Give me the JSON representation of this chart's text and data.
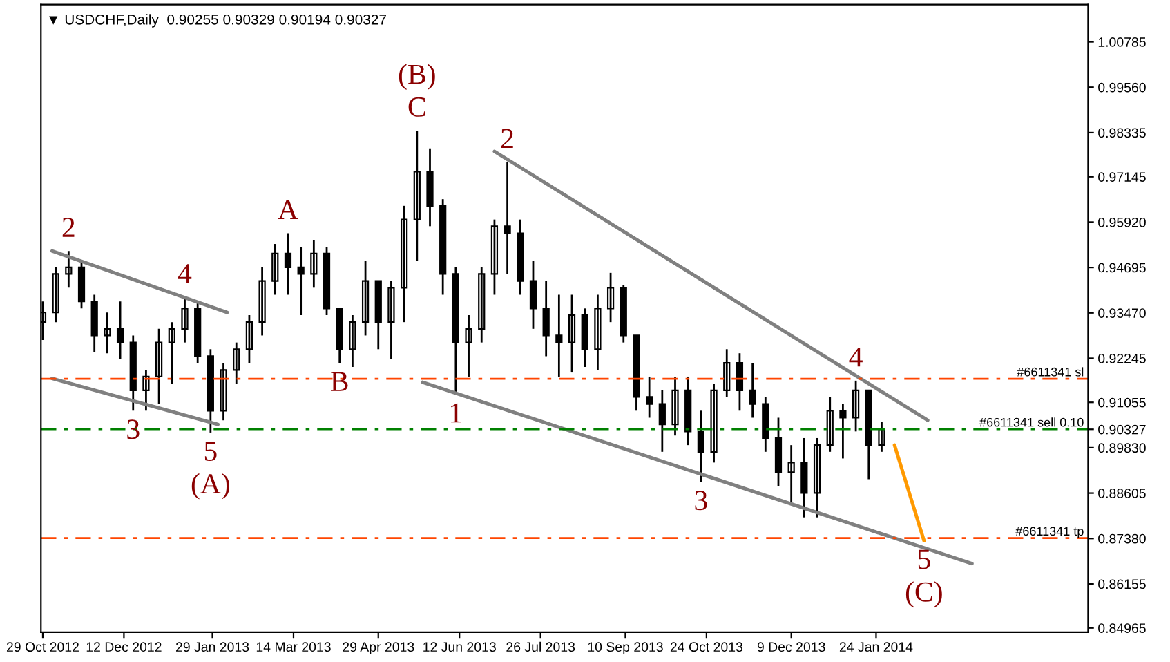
{
  "chart_data": {
    "type": "candlestick",
    "title": "▼ USDCHF,Daily  0.90255 0.90329 0.90194 0.90327",
    "color": "#000000",
    "x": [
      "2012-10-29",
      "2012-11-05",
      "2012-11-12",
      "2012-11-19",
      "2012-11-26",
      "2012-12-03",
      "2012-12-10",
      "2012-12-17",
      "2012-12-24",
      "2012-12-31",
      "2013-01-07",
      "2013-01-14",
      "2013-01-21",
      "2013-01-28",
      "2013-02-04",
      "2013-02-11",
      "2013-02-18",
      "2013-02-25",
      "2013-03-04",
      "2013-03-11",
      "2013-03-18",
      "2013-03-25",
      "2013-04-01",
      "2013-04-08",
      "2013-04-15",
      "2013-04-22",
      "2013-04-29",
      "2013-05-06",
      "2013-05-13",
      "2013-05-20",
      "2013-05-27",
      "2013-06-03",
      "2013-06-10",
      "2013-06-17",
      "2013-06-24",
      "2013-07-01",
      "2013-07-08",
      "2013-07-15",
      "2013-07-22",
      "2013-07-29",
      "2013-08-05",
      "2013-08-12",
      "2013-08-19",
      "2013-08-26",
      "2013-09-02",
      "2013-09-09",
      "2013-09-16",
      "2013-09-23",
      "2013-09-30",
      "2013-10-07",
      "2013-10-14",
      "2013-10-21",
      "2013-10-28",
      "2013-11-04",
      "2013-11-11",
      "2013-11-18",
      "2013-11-25",
      "2013-12-02",
      "2013-12-09",
      "2013-12-16",
      "2013-12-23",
      "2013-12-30",
      "2014-01-06",
      "2014-01-13",
      "2014-01-20",
      "2014-01-27"
    ],
    "ohlc": [
      [
        0.9322,
        0.9378,
        0.9274,
        0.9348
      ],
      [
        0.9348,
        0.947,
        0.9322,
        0.9452
      ],
      [
        0.9452,
        0.9514,
        0.9415,
        0.947
      ],
      [
        0.947,
        0.9488,
        0.9359,
        0.9378
      ],
      [
        0.9378,
        0.9396,
        0.9241,
        0.9286
      ],
      [
        0.9286,
        0.9348,
        0.9238,
        0.9304
      ],
      [
        0.9304,
        0.9378,
        0.9223,
        0.9267
      ],
      [
        0.9267,
        0.9286,
        0.9083,
        0.9138
      ],
      [
        0.9138,
        0.9193,
        0.9083,
        0.9175
      ],
      [
        0.9175,
        0.9304,
        0.9101,
        0.9267
      ],
      [
        0.9267,
        0.9322,
        0.9156,
        0.9304
      ],
      [
        0.9304,
        0.9389,
        0.9267,
        0.9359
      ],
      [
        0.9359,
        0.9378,
        0.9212,
        0.923
      ],
      [
        0.923,
        0.9249,
        0.9024,
        0.9083
      ],
      [
        0.9083,
        0.9212,
        0.9057,
        0.9193
      ],
      [
        0.9193,
        0.9267,
        0.9156,
        0.9249
      ],
      [
        0.9249,
        0.9341,
        0.9212,
        0.9322
      ],
      [
        0.9322,
        0.947,
        0.9286,
        0.9433
      ],
      [
        0.9433,
        0.9533,
        0.9396,
        0.9507
      ],
      [
        0.9507,
        0.9562,
        0.9396,
        0.947
      ],
      [
        0.947,
        0.9525,
        0.9341,
        0.9452
      ],
      [
        0.9452,
        0.9544,
        0.9415,
        0.9507
      ],
      [
        0.9507,
        0.9525,
        0.9341,
        0.9359
      ],
      [
        0.9359,
        0.9359,
        0.9212,
        0.9249
      ],
      [
        0.9249,
        0.9341,
        0.9201,
        0.9322
      ],
      [
        0.9322,
        0.9488,
        0.9286,
        0.9433
      ],
      [
        0.9433,
        0.9433,
        0.9249,
        0.9322
      ],
      [
        0.9322,
        0.9433,
        0.9223,
        0.9415
      ],
      [
        0.9415,
        0.9636,
        0.9322,
        0.9599
      ],
      [
        0.9599,
        0.9839,
        0.9488,
        0.9728
      ],
      [
        0.9728,
        0.9791,
        0.9581,
        0.9636
      ],
      [
        0.9636,
        0.9654,
        0.9396,
        0.9452
      ],
      [
        0.9452,
        0.947,
        0.9127,
        0.9267
      ],
      [
        0.9267,
        0.9341,
        0.9175,
        0.9304
      ],
      [
        0.9304,
        0.947,
        0.9267,
        0.9452
      ],
      [
        0.9452,
        0.9599,
        0.9396,
        0.9581
      ],
      [
        0.9581,
        0.9754,
        0.9452,
        0.9562
      ],
      [
        0.9562,
        0.9599,
        0.9396,
        0.9433
      ],
      [
        0.9433,
        0.9488,
        0.9304,
        0.9359
      ],
      [
        0.9359,
        0.9433,
        0.923,
        0.9286
      ],
      [
        0.9286,
        0.9396,
        0.9175,
        0.9267
      ],
      [
        0.9267,
        0.9396,
        0.9186,
        0.9341
      ],
      [
        0.9341,
        0.9359,
        0.9201,
        0.9249
      ],
      [
        0.9249,
        0.9396,
        0.9193,
        0.9359
      ],
      [
        0.9359,
        0.9455,
        0.9322,
        0.9415
      ],
      [
        0.9415,
        0.9422,
        0.9267,
        0.9286
      ],
      [
        0.9286,
        0.9286,
        0.9083,
        0.912
      ],
      [
        0.912,
        0.9175,
        0.9064,
        0.9101
      ],
      [
        0.9101,
        0.9138,
        0.8972,
        0.9046
      ],
      [
        0.9046,
        0.9175,
        0.9016,
        0.9138
      ],
      [
        0.9138,
        0.9175,
        0.899,
        0.9027
      ],
      [
        0.9027,
        0.9083,
        0.8891,
        0.8972
      ],
      [
        0.8972,
        0.9156,
        0.8943,
        0.9138
      ],
      [
        0.9138,
        0.9249,
        0.912,
        0.9212
      ],
      [
        0.9212,
        0.9238,
        0.9083,
        0.9138
      ],
      [
        0.9138,
        0.9212,
        0.9064,
        0.9101
      ],
      [
        0.9101,
        0.912,
        0.8972,
        0.9009
      ],
      [
        0.9009,
        0.9064,
        0.888,
        0.8917
      ],
      [
        0.8917,
        0.899,
        0.8832,
        0.8943
      ],
      [
        0.8943,
        0.9009,
        0.8795,
        0.8861
      ],
      [
        0.8861,
        0.9009,
        0.8795,
        0.899
      ],
      [
        0.899,
        0.912,
        0.8972,
        0.9083
      ],
      [
        0.9083,
        0.9101,
        0.8954,
        0.9064
      ],
      [
        0.9064,
        0.9164,
        0.9027,
        0.9138
      ],
      [
        0.9138,
        0.9138,
        0.8898,
        0.899
      ],
      [
        0.899,
        0.9053,
        0.8972,
        0.9033
      ]
    ],
    "series": [
      {
        "type": "line",
        "color": "#808080",
        "x": [
          "2012-11-03",
          "2013-02-06"
        ],
        "values": [
          0.9514,
          0.9348
        ]
      },
      {
        "type": "line",
        "color": "#808080",
        "x": [
          "2012-11-03",
          "2013-02-01"
        ],
        "values": [
          0.917,
          0.9046
        ]
      },
      {
        "type": "line",
        "color": "#808080",
        "x": [
          "2013-05-23",
          "2014-03-17"
        ],
        "values": [
          0.916,
          0.867
        ]
      },
      {
        "type": "line",
        "color": "#808080",
        "x": [
          "2013-07-01",
          "2014-02-21"
        ],
        "values": [
          0.9783,
          0.9057
        ]
      },
      {
        "type": "line",
        "color": "#ff9900",
        "x": [
          "2014-02-03",
          "2014-02-19"
        ],
        "values": [
          0.899,
          0.8732
        ]
      }
    ],
    "ref_lines": [
      {
        "axis": "y",
        "value": 0.9169,
        "label": "#6611341 sl",
        "color": "#ff4500",
        "line_style": "dashed"
      },
      {
        "axis": "y",
        "value": 0.9033,
        "label": "#6611341 sell 0.10",
        "color": "#008000",
        "line_style": "dashed"
      },
      {
        "axis": "y",
        "value": 0.8739,
        "label": "#6611341 tp",
        "color": "#ff4500",
        "line_style": "dashed"
      }
    ],
    "annotations": [
      {
        "text": "2",
        "x": "2012-11-12",
        "y": 0.9514
      },
      {
        "text": "3",
        "x": "2012-12-17",
        "y": 0.9083
      },
      {
        "text": "4",
        "x": "2013-01-14",
        "y": 0.9389
      },
      {
        "text": "5",
        "x": "2013-01-28",
        "y": 0.9024
      },
      {
        "text": "(A)",
        "x": "2013-01-28",
        "y": 0.9024
      },
      {
        "text": "A",
        "x": "2013-03-11",
        "y": 0.9562
      },
      {
        "text": "B",
        "x": "2013-04-08",
        "y": 0.9212
      },
      {
        "text": "C",
        "x": "2013-05-20",
        "y": 0.9839
      },
      {
        "text": "(B)",
        "x": "2013-05-20",
        "y": 0.9839
      },
      {
        "text": "1",
        "x": "2013-06-10",
        "y": 0.9127
      },
      {
        "text": "2",
        "x": "2013-07-08",
        "y": 0.9754
      },
      {
        "text": "3",
        "x": "2013-10-21",
        "y": 0.8891
      },
      {
        "text": "4",
        "x": "2014-01-13",
        "y": 0.9164
      },
      {
        "text": "5",
        "x": "2014-02-19",
        "y": 0.8732
      },
      {
        "text": "(C)",
        "x": "2014-02-19",
        "y": 0.8732
      }
    ],
    "xlim": [
      "2012-10-28",
      "2014-05-19"
    ],
    "xticks": [
      {
        "value": "2012-10-29",
        "label": "29 Oct 2012"
      },
      {
        "value": "2012-12-12",
        "label": "12 Dec 2012"
      },
      {
        "value": "2013-01-29",
        "label": "29 Jan 2013"
      },
      {
        "value": "2013-03-14",
        "label": "14 Mar 2013"
      },
      {
        "value": "2013-04-29",
        "label": "29 Apr 2013"
      },
      {
        "value": "2013-06-12",
        "label": "12 Jun 2013"
      },
      {
        "value": "2013-07-26",
        "label": "26 Jul 2013"
      },
      {
        "value": "2013-09-10",
        "label": "10 Sep 2013"
      },
      {
        "value": "2013-10-24",
        "label": "24 Oct 2013"
      },
      {
        "value": "2013-12-09",
        "label": "9 Dec 2013"
      },
      {
        "value": "2014-01-24",
        "label": "24 Jan 2014"
      }
    ],
    "ylim": [
      0.8485,
      1.0179
    ],
    "yticks": [
      {
        "value": 1.00785,
        "label": "1.00785"
      },
      {
        "value": 0.9956,
        "label": "0.99560"
      },
      {
        "value": 0.98335,
        "label": "0.98335"
      },
      {
        "value": 0.97145,
        "label": "0.97145"
      },
      {
        "value": 0.9592,
        "label": "0.95920"
      },
      {
        "value": 0.94695,
        "label": "0.94695"
      },
      {
        "value": 0.9347,
        "label": "0.93470"
      },
      {
        "value": 0.92245,
        "label": "0.92245"
      },
      {
        "value": 0.91055,
        "label": "0.91055"
      },
      {
        "value": 0.90327,
        "label": "0.90327"
      },
      {
        "value": 0.8983,
        "label": "0.89830"
      },
      {
        "value": 0.88605,
        "label": "0.88605"
      },
      {
        "value": 0.8738,
        "label": "0.87380"
      },
      {
        "value": 0.86155,
        "label": "0.86155"
      },
      {
        "value": 0.84965,
        "label": "0.84965"
      }
    ],
    "grid": false,
    "legend": false
  }
}
